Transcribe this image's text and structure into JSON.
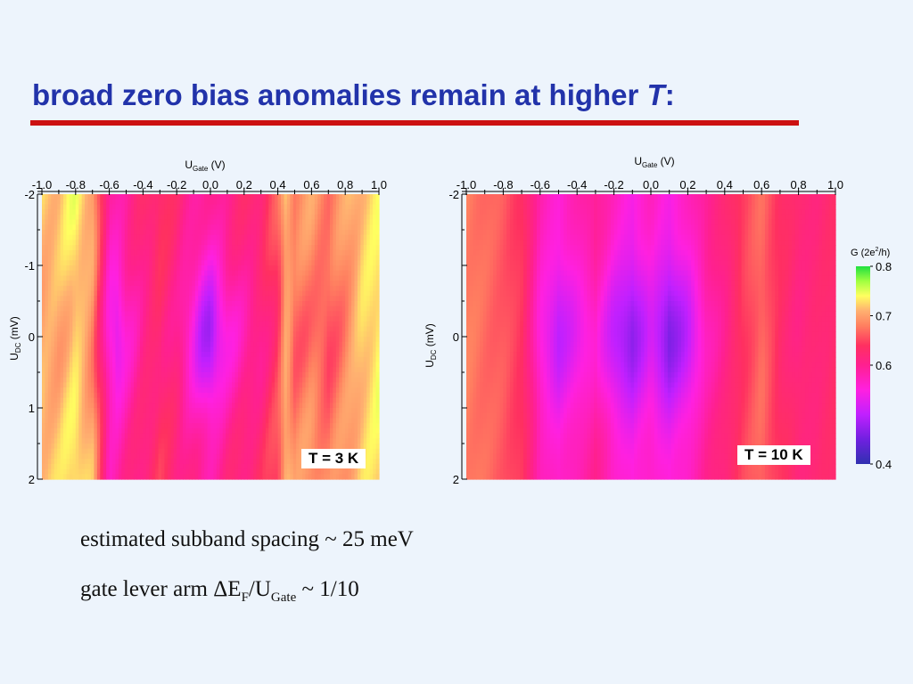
{
  "slide": {
    "title_main": "broad zero bias anomalies remain at higher ",
    "title_italic": "T",
    "title_tail": ":",
    "colors": {
      "title": "#2233aa",
      "rule": "#cc1111",
      "background": "#edf4fc"
    }
  },
  "notes": {
    "line1": "estimated subband spacing ~ 25 meV",
    "line2_prefix": "gate lever arm ",
    "line2_delta": "ΔE",
    "line2_sub_f": "F",
    "line2_mid": "/U",
    "line2_sub_gate": "Gate",
    "line2_suffix": " ~ 1/10"
  },
  "chart_data": [
    {
      "type": "heatmap",
      "annotation": "T = 3 K",
      "xlabel": "U",
      "xlabel_sub": "Gate",
      "xlabel_unit": " (V)",
      "ylabel": "U",
      "ylabel_sub": "DC",
      "ylabel_unit": " (mV)",
      "xlim": [
        -1.0,
        1.0
      ],
      "ylim": [
        -2,
        2
      ],
      "x_ticks": [
        "-1.0",
        "-0.8",
        "-0.6",
        "-0.4",
        "-0.2",
        "0.0",
        "0.2",
        "0.4",
        "0.6",
        "0.8",
        "1.0"
      ],
      "y_ticks": [
        "-2",
        "-1",
        "0",
        "1",
        "2"
      ],
      "value_range": [
        0.4,
        0.8
      ],
      "profile": {
        "gate": [
          -1.0,
          -0.9,
          -0.8,
          -0.7,
          -0.65,
          -0.6,
          -0.55,
          -0.5,
          -0.4,
          -0.3,
          -0.2,
          -0.1,
          -0.05,
          0.0,
          0.05,
          0.1,
          0.2,
          0.3,
          0.4,
          0.45,
          0.5,
          0.6,
          0.7,
          0.8,
          0.9,
          1.0
        ],
        "G_at_zero_bias": [
          0.7,
          0.7,
          0.72,
          0.68,
          0.62,
          0.55,
          0.52,
          0.56,
          0.6,
          0.62,
          0.6,
          0.54,
          0.5,
          0.48,
          0.52,
          0.55,
          0.58,
          0.6,
          0.64,
          0.7,
          0.66,
          0.67,
          0.65,
          0.68,
          0.72,
          0.74
        ],
        "G_at_high_bias": [
          0.72,
          0.72,
          0.74,
          0.71,
          0.64,
          0.58,
          0.59,
          0.6,
          0.62,
          0.64,
          0.62,
          0.6,
          0.59,
          0.59,
          0.6,
          0.61,
          0.62,
          0.63,
          0.66,
          0.72,
          0.69,
          0.7,
          0.68,
          0.7,
          0.72,
          0.73
        ]
      },
      "x_dense": [],
      "y_dense": []
    },
    {
      "type": "heatmap",
      "annotation": "T = 10 K",
      "xlabel": "U",
      "xlabel_sub": "Gate",
      "xlabel_unit": " (V)",
      "ylabel": "U",
      "ylabel_sub": "DC",
      "ylabel_unit": " (mV)",
      "xlim": [
        -1.0,
        1.0
      ],
      "ylim": [
        -2,
        2
      ],
      "x_ticks": [
        "-1.0",
        "-0.8",
        "-0.6",
        "-0.4",
        "-0.2",
        "0.0",
        "0.2",
        "0.4",
        "0.6",
        "0.8",
        "1.0"
      ],
      "y_ticks": [
        "-2",
        "",
        "0",
        "",
        "2"
      ],
      "value_range": [
        0.4,
        0.8
      ],
      "profile": {
        "gate": [
          -1.0,
          -0.8,
          -0.7,
          -0.65,
          -0.6,
          -0.5,
          -0.4,
          -0.3,
          -0.2,
          -0.1,
          0.0,
          0.1,
          0.2,
          0.3,
          0.4,
          0.5,
          0.6,
          0.7,
          0.8,
          0.9,
          1.0
        ],
        "G_at_zero_bias": [
          0.68,
          0.66,
          0.64,
          0.6,
          0.55,
          0.5,
          0.53,
          0.56,
          0.5,
          0.47,
          0.52,
          0.46,
          0.5,
          0.57,
          0.6,
          0.64,
          0.67,
          0.63,
          0.61,
          0.62,
          0.63
        ],
        "G_at_high_bias": [
          0.68,
          0.66,
          0.64,
          0.61,
          0.58,
          0.56,
          0.58,
          0.6,
          0.57,
          0.55,
          0.57,
          0.55,
          0.57,
          0.6,
          0.62,
          0.65,
          0.67,
          0.64,
          0.62,
          0.62,
          0.63
        ]
      },
      "x_dense": [],
      "y_dense": []
    }
  ],
  "colorbar": {
    "label_prefix": "G (2e",
    "label_sup": "2",
    "label_suffix": "/h)",
    "ticks": [
      {
        "value": 0.8,
        "text": "0.8"
      },
      {
        "value": 0.7,
        "text": "0.7"
      },
      {
        "value": 0.6,
        "text": "0.6"
      },
      {
        "value": 0.4,
        "text": "0.4"
      }
    ],
    "color_stops": [
      {
        "value": 0.4,
        "color": "#3030b0"
      },
      {
        "value": 0.45,
        "color": "#7020e0"
      },
      {
        "value": 0.5,
        "color": "#c020ff"
      },
      {
        "value": 0.55,
        "color": "#ff20e0"
      },
      {
        "value": 0.6,
        "color": "#ff2090"
      },
      {
        "value": 0.64,
        "color": "#ff3060"
      },
      {
        "value": 0.68,
        "color": "#ff8060"
      },
      {
        "value": 0.71,
        "color": "#ffb070"
      },
      {
        "value": 0.74,
        "color": "#ffff60"
      },
      {
        "value": 0.77,
        "color": "#a0ff40"
      },
      {
        "value": 0.8,
        "color": "#20e040"
      }
    ]
  }
}
